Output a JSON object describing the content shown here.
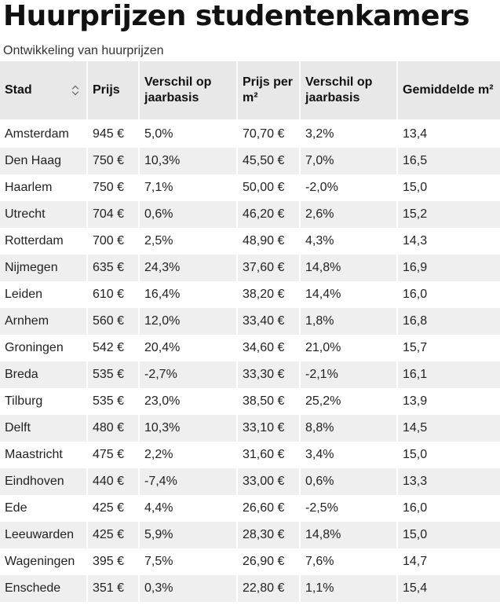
{
  "title": "Huurprijzen studentenkamers",
  "subtitle": "Ontwikkeling van huurprijzen",
  "table": {
    "headers": {
      "stad": "Stad",
      "prijs": "Prijs",
      "verschil1": "Verschil op jaarbasis",
      "prijs_m2": "Prijs per m²",
      "verschil2": "Verschil op jaarbasis",
      "gem_m2": "Gemiddelde m²"
    },
    "sort_icon": "sort-updown-icon",
    "rows": [
      {
        "stad": "Amsterdam",
        "prijs": "945 €",
        "verschil1": "5,0%",
        "prijs_m2": "70,70 €",
        "verschil2": "3,2%",
        "gem_m2": "13,4"
      },
      {
        "stad": "Den Haag",
        "prijs": "750 €",
        "verschil1": "10,3%",
        "prijs_m2": "45,50 €",
        "verschil2": "7,0%",
        "gem_m2": "16,5"
      },
      {
        "stad": "Haarlem",
        "prijs": "750 €",
        "verschil1": "7,1%",
        "prijs_m2": "50,00 €",
        "verschil2": "-2,0%",
        "gem_m2": "15,0"
      },
      {
        "stad": "Utrecht",
        "prijs": "704 €",
        "verschil1": "0,6%",
        "prijs_m2": "46,20 €",
        "verschil2": "2,6%",
        "gem_m2": "15,2"
      },
      {
        "stad": "Rotterdam",
        "prijs": "700 €",
        "verschil1": "2,5%",
        "prijs_m2": "48,90 €",
        "verschil2": "4,3%",
        "gem_m2": "14,3"
      },
      {
        "stad": "Nijmegen",
        "prijs": "635 €",
        "verschil1": "24,3%",
        "prijs_m2": "37,60 €",
        "verschil2": "14,8%",
        "gem_m2": "16,9"
      },
      {
        "stad": "Leiden",
        "prijs": "610 €",
        "verschil1": "16,4%",
        "prijs_m2": "38,20 €",
        "verschil2": "14,4%",
        "gem_m2": "16,0"
      },
      {
        "stad": "Arnhem",
        "prijs": "560 €",
        "verschil1": "12,0%",
        "prijs_m2": "33,40 €",
        "verschil2": "1,8%",
        "gem_m2": "16,8"
      },
      {
        "stad": "Groningen",
        "prijs": "542 €",
        "verschil1": "20,4%",
        "prijs_m2": "34,60 €",
        "verschil2": "21,0%",
        "gem_m2": "15,7"
      },
      {
        "stad": "Breda",
        "prijs": "535 €",
        "verschil1": "-2,7%",
        "prijs_m2": "33,30 €",
        "verschil2": "-2,1%",
        "gem_m2": "16,1"
      },
      {
        "stad": "Tilburg",
        "prijs": "535 €",
        "verschil1": "23,0%",
        "prijs_m2": "38,50 €",
        "verschil2": "25,2%",
        "gem_m2": "13,9"
      },
      {
        "stad": "Delft",
        "prijs": "480 €",
        "verschil1": "10,3%",
        "prijs_m2": "33,10 €",
        "verschil2": "8,8%",
        "gem_m2": "14,5"
      },
      {
        "stad": "Maastricht",
        "prijs": "475 €",
        "verschil1": "2,2%",
        "prijs_m2": "31,60 €",
        "verschil2": "3,4%",
        "gem_m2": "15,0"
      },
      {
        "stad": "Eindhoven",
        "prijs": "440 €",
        "verschil1": "-7,4%",
        "prijs_m2": "33,00 €",
        "verschil2": "0,6%",
        "gem_m2": "13,3"
      },
      {
        "stad": "Ede",
        "prijs": "425 €",
        "verschil1": "4,4%",
        "prijs_m2": "26,60 €",
        "verschil2": "-2,5%",
        "gem_m2": "16,0"
      },
      {
        "stad": "Leeuwarden",
        "prijs": "425 €",
        "verschil1": "5,9%",
        "prijs_m2": "28,30 €",
        "verschil2": "14,8%",
        "gem_m2": "15,0"
      },
      {
        "stad": "Wageningen",
        "prijs": "395 €",
        "verschil1": "7,5%",
        "prijs_m2": "26,90 €",
        "verschil2": "7,6%",
        "gem_m2": "14,7"
      },
      {
        "stad": "Enschede",
        "prijs": "351 €",
        "verschil1": "0,3%",
        "prijs_m2": "22,80 €",
        "verschil2": "1,1%",
        "gem_m2": "15,4"
      }
    ]
  }
}
